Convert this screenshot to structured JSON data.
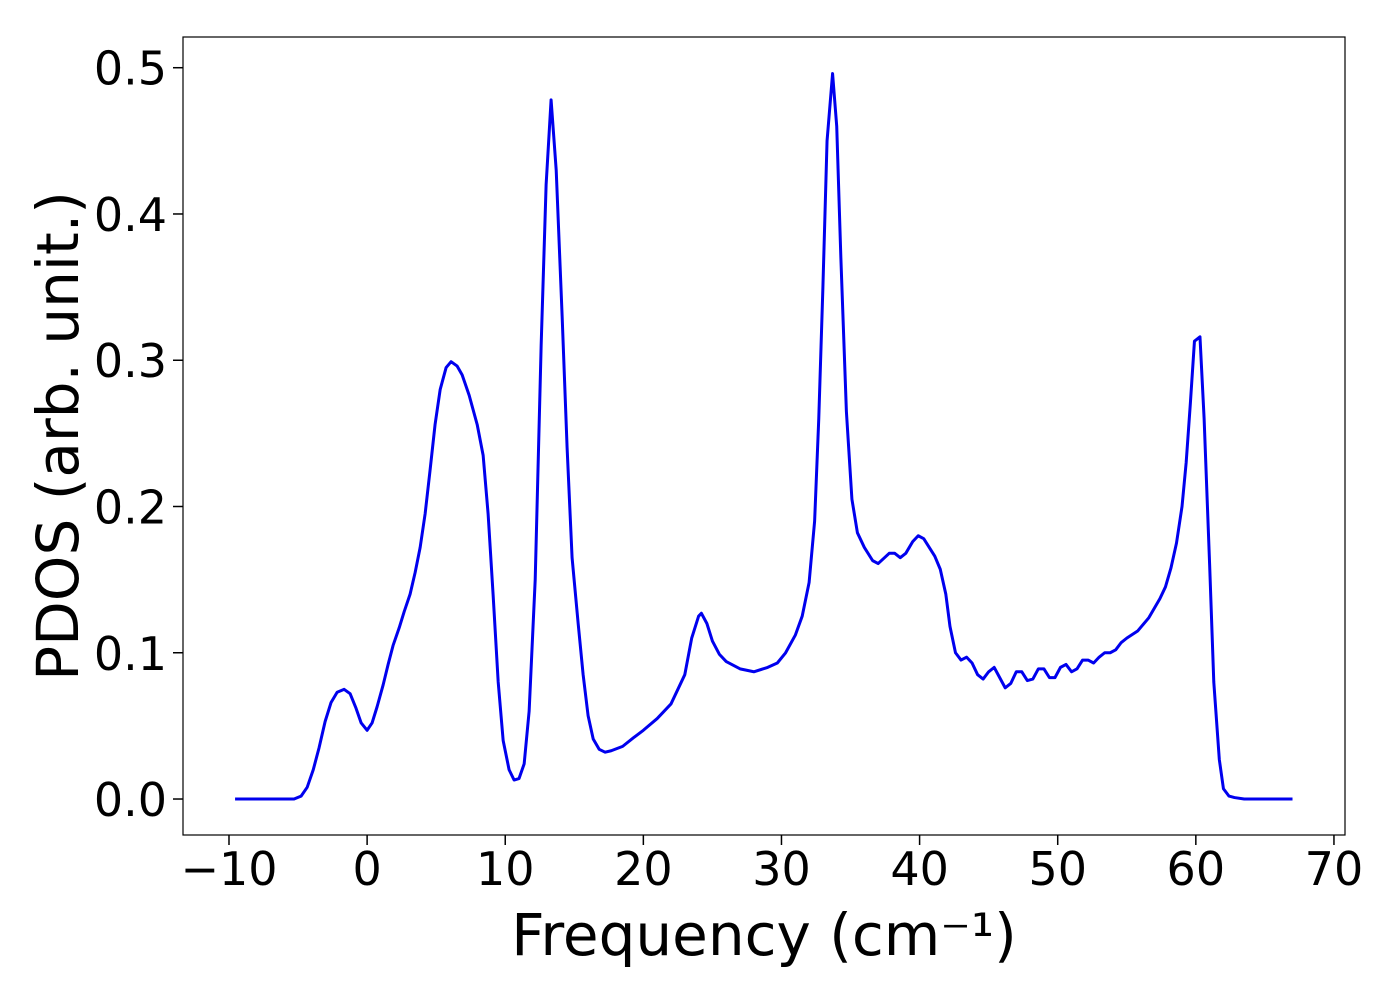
{
  "chart_data": {
    "type": "line",
    "x_label": "Frequency (cm⁻¹)",
    "y_label": "PDOS (arb. unit.)",
    "xlim": [
      -13.33,
      70.8
    ],
    "ylim": [
      -0.0246,
      0.521
    ],
    "xticks": [
      {
        "value": -10,
        "label": "−10"
      },
      0,
      10,
      20,
      30,
      40,
      50,
      60,
      70
    ],
    "yticks": [
      {
        "value": 0,
        "label": "0.0"
      },
      0.1,
      0.2,
      0.3,
      0.4,
      0.5
    ],
    "x": [
      -9.56,
      -5.29,
      -4.78,
      -4.34,
      -3.9,
      -3.48,
      -3.04,
      -2.61,
      -2.17,
      -1.67,
      -1.23,
      -0.8,
      -0.43,
      0,
      0.36,
      0.72,
      1.16,
      1.52,
      1.88,
      2.32,
      2.68,
      3.11,
      3.48,
      3.84,
      4.2,
      4.56,
      4.92,
      5.29,
      5.72,
      6.08,
      6.52,
      6.88,
      7.39,
      7.97,
      8.4,
      8.76,
      9.12,
      9.49,
      9.85,
      10.28,
      10.64,
      11.0,
      11.37,
      11.73,
      12.17,
      12.6,
      12.96,
      13.32,
      13.69,
      14.12,
      14.48,
      14.84,
      15.28,
      15.64,
      16.0,
      16.37,
      16.8,
      17.23,
      17.67,
      18.5,
      19.3,
      20,
      21,
      22,
      23,
      23.5,
      24,
      24.2,
      24.6,
      25,
      25.5,
      26,
      27,
      28,
      29,
      29.7,
      30.3,
      31,
      31.5,
      32,
      32.4,
      32.7,
      33,
      33.3,
      33.7,
      34,
      34.3,
      34.7,
      35.1,
      35.5,
      36,
      36.6,
      37,
      37.8,
      38.2,
      38.6,
      39,
      39.5,
      39.9,
      40.3,
      40.7,
      41.1,
      41.5,
      41.9,
      42.2,
      42.6,
      43,
      43.4,
      43.8,
      44.2,
      44.6,
      45,
      45.4,
      45.8,
      46.2,
      46.6,
      47,
      47.4,
      47.8,
      48.2,
      48.6,
      49,
      49.4,
      49.8,
      50.2,
      50.6,
      51,
      51.4,
      51.8,
      52.2,
      52.6,
      53,
      53.4,
      53.8,
      54.2,
      54.6,
      55,
      55.8,
      56.6,
      57.4,
      57.8,
      58.2,
      58.6,
      59,
      59.3,
      59.6,
      59.9,
      60.3,
      60.6,
      61,
      61.3,
      61.7,
      62,
      62.4,
      62.8,
      63.5,
      67
    ],
    "series": [
      {
        "name": "PDOS",
        "color": "#0000ee",
        "values": [
          0,
          0,
          0.002,
          0.008,
          0.02,
          0.035,
          0.053,
          0.066,
          0.073,
          0.075,
          0.072,
          0.062,
          0.052,
          0.047,
          0.052,
          0.063,
          0.078,
          0.092,
          0.105,
          0.117,
          0.128,
          0.14,
          0.155,
          0.172,
          0.195,
          0.225,
          0.256,
          0.28,
          0.295,
          0.299,
          0.296,
          0.29,
          0.276,
          0.256,
          0.235,
          0.195,
          0.14,
          0.08,
          0.04,
          0.02,
          0.013,
          0.014,
          0.024,
          0.06,
          0.15,
          0.31,
          0.42,
          0.478,
          0.43,
          0.33,
          0.24,
          0.165,
          0.12,
          0.085,
          0.057,
          0.041,
          0.034,
          0.032,
          0.033,
          0.036,
          0.042,
          0.047,
          0.055,
          0.065,
          0.085,
          0.11,
          0.125,
          0.127,
          0.12,
          0.108,
          0.099,
          0.094,
          0.089,
          0.087,
          0.09,
          0.093,
          0.1,
          0.112,
          0.125,
          0.148,
          0.19,
          0.26,
          0.35,
          0.45,
          0.496,
          0.46,
          0.37,
          0.265,
          0.205,
          0.182,
          0.172,
          0.163,
          0.161,
          0.168,
          0.168,
          0.165,
          0.168,
          0.176,
          0.18,
          0.178,
          0.172,
          0.166,
          0.157,
          0.14,
          0.118,
          0.1,
          0.095,
          0.097,
          0.093,
          0.085,
          0.082,
          0.087,
          0.09,
          0.083,
          0.076,
          0.079,
          0.087,
          0.087,
          0.081,
          0.082,
          0.089,
          0.089,
          0.083,
          0.083,
          0.09,
          0.092,
          0.087,
          0.089,
          0.095,
          0.095,
          0.093,
          0.097,
          0.1,
          0.1,
          0.102,
          0.107,
          0.11,
          0.115,
          0.124,
          0.137,
          0.145,
          0.158,
          0.175,
          0.2,
          0.23,
          0.27,
          0.313,
          0.316,
          0.26,
          0.16,
          0.08,
          0.027,
          0.007,
          0.002,
          0.001,
          0,
          0
        ]
      }
    ]
  }
}
